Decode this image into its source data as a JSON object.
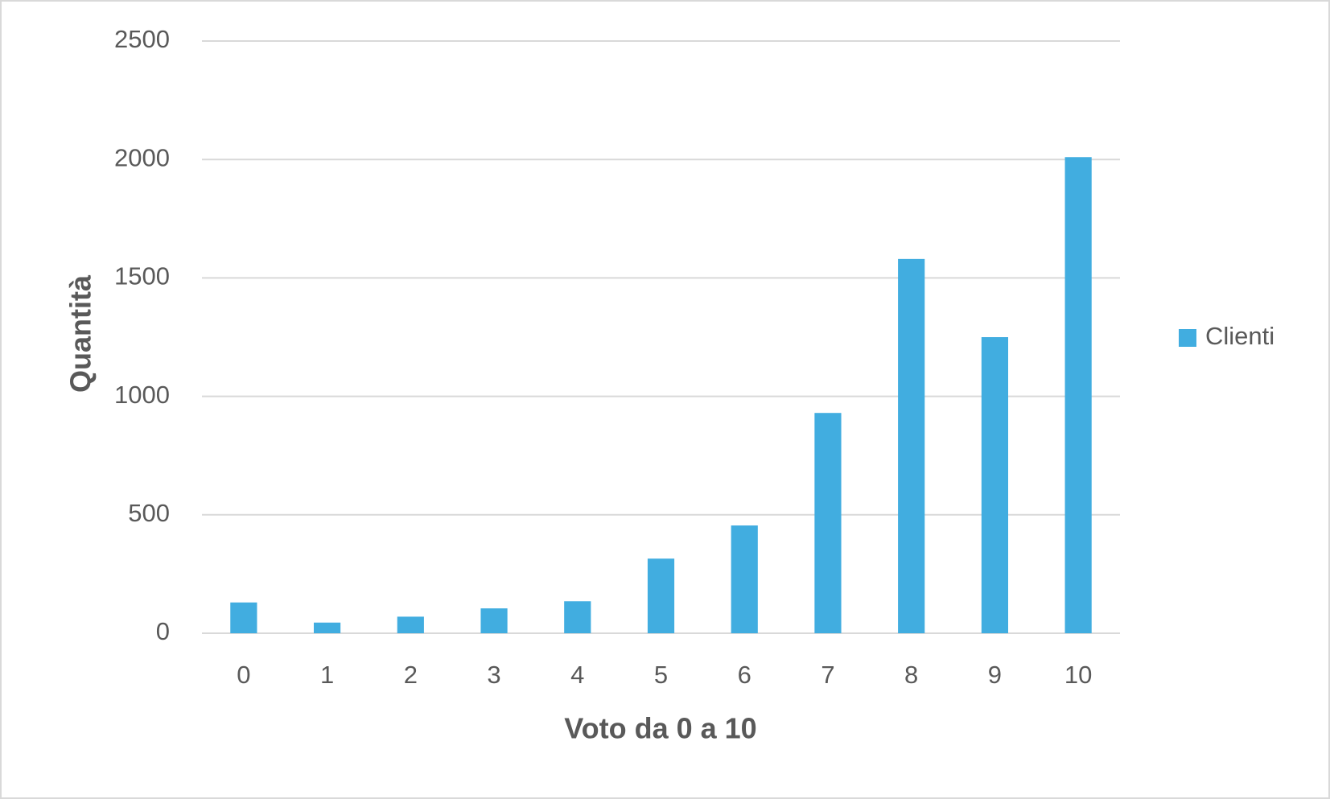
{
  "chart_data": {
    "type": "bar",
    "x_label": "Voto da 0 a 10",
    "y_label": "Quantità",
    "categories": [
      "0",
      "1",
      "2",
      "3",
      "4",
      "5",
      "6",
      "7",
      "8",
      "9",
      "10"
    ],
    "series": [
      {
        "name": "Clienti",
        "color": "#41ade0",
        "values": [
          130,
          45,
          70,
          105,
          135,
          315,
          455,
          930,
          1580,
          1250,
          2010
        ]
      }
    ],
    "ylim": [
      0,
      2500
    ],
    "yticks": [
      0,
      500,
      1000,
      1500,
      2000,
      2500
    ],
    "grid": true,
    "legend": "right"
  }
}
